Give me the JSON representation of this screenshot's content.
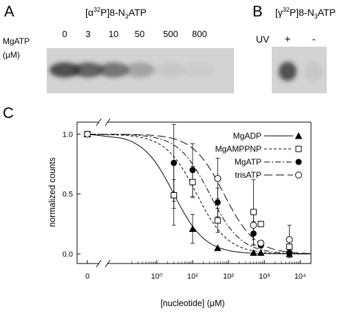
{
  "panels": {
    "A": {
      "letter": "A",
      "title_main": "[α",
      "title_sup": "32",
      "title_mid": "P]8-N",
      "title_sub": "3",
      "title_end": "ATP",
      "row_label_1": "MgATP",
      "row_label_2": "(μM)",
      "lanes": [
        "0",
        "3",
        "10",
        "50",
        "500",
        "800"
      ],
      "band_intensity": [
        1.0,
        0.85,
        0.7,
        0.35,
        0.08,
        0.05
      ]
    },
    "B": {
      "letter": "B",
      "title_main": "[γ",
      "title_sup": "32",
      "title_mid": "P]8-N",
      "title_sub": "3",
      "title_end": "ATP",
      "row_label": "UV",
      "lanes": [
        "+",
        "-"
      ],
      "band_intensity": [
        0.9,
        0.08
      ]
    },
    "C": {
      "letter": "C"
    }
  },
  "colors": {
    "gel_background": "#d4d4d4",
    "band": "#222222",
    "line": "#000000"
  },
  "chart_data": {
    "type": "scatter",
    "xscale": "log-with-zero-break",
    "xlabel": "[nucleotide] (μM)",
    "ylabel": "normalized counts",
    "xticks": [
      "0",
      "10⁰",
      "10¹",
      "10²",
      "10³",
      "10⁴"
    ],
    "yticks": [
      "0.0",
      "0.5",
      "1.0"
    ],
    "xlim": [
      0.05,
      20000
    ],
    "ylim": [
      -0.08,
      1.1
    ],
    "legend_position": "top-right",
    "series": [
      {
        "name": "MgADP",
        "marker": "filled-triangle",
        "line_style": "solid",
        "ic50": 3,
        "points": [
          {
            "x": 0,
            "y": 1.0,
            "err": 0
          },
          {
            "x": 3,
            "y": 0.5,
            "err": 0.12
          },
          {
            "x": 10,
            "y": 0.21,
            "err": 0.12
          },
          {
            "x": 50,
            "y": 0.05,
            "err": 0
          },
          {
            "x": 500,
            "y": 0.01,
            "err": 0
          },
          {
            "x": 800,
            "y": 0.01,
            "err": 0
          },
          {
            "x": 5000,
            "y": 0.0,
            "err": 0.03
          }
        ]
      },
      {
        "name": "MgAMPPNP",
        "marker": "open-square",
        "line_style": "short-dash",
        "ic50": 13,
        "points": [
          {
            "x": 0,
            "y": 1.0,
            "err": 0
          },
          {
            "x": 3,
            "y": 0.49,
            "err": 0.25
          },
          {
            "x": 10,
            "y": 0.6,
            "err": 0.13
          },
          {
            "x": 50,
            "y": 0.28,
            "err": 0.1
          },
          {
            "x": 500,
            "y": 0.35,
            "err": 0.27
          },
          {
            "x": 800,
            "y": 0.25,
            "err": 0
          },
          {
            "x": 5000,
            "y": 0.06,
            "err": 0.05
          }
        ]
      },
      {
        "name": "MgATP",
        "marker": "filled-circle",
        "line_style": "dash-dot",
        "ic50": 30,
        "points": [
          {
            "x": 0,
            "y": 1.0,
            "err": 0
          },
          {
            "x": 3,
            "y": 0.76,
            "err": 0.32
          },
          {
            "x": 10,
            "y": 0.7,
            "err": 0.22
          },
          {
            "x": 50,
            "y": 0.43,
            "err": 0.12
          },
          {
            "x": 500,
            "y": 0.17,
            "err": 0.1
          },
          {
            "x": 800,
            "y": 0.07,
            "err": 0
          },
          {
            "x": 5000,
            "y": 0.01,
            "err": 0.03
          }
        ]
      },
      {
        "name": "trisATP",
        "marker": "open-circle",
        "line_style": "long-dash",
        "ic50": 75,
        "points": [
          {
            "x": 0,
            "y": 1.0,
            "err": 0
          },
          {
            "x": 50,
            "y": 0.63,
            "err": 0.17
          },
          {
            "x": 500,
            "y": 0.24,
            "err": 0.12
          },
          {
            "x": 800,
            "y": 0.09,
            "err": 0
          },
          {
            "x": 5000,
            "y": 0.12,
            "err": 0.12
          }
        ]
      }
    ]
  }
}
